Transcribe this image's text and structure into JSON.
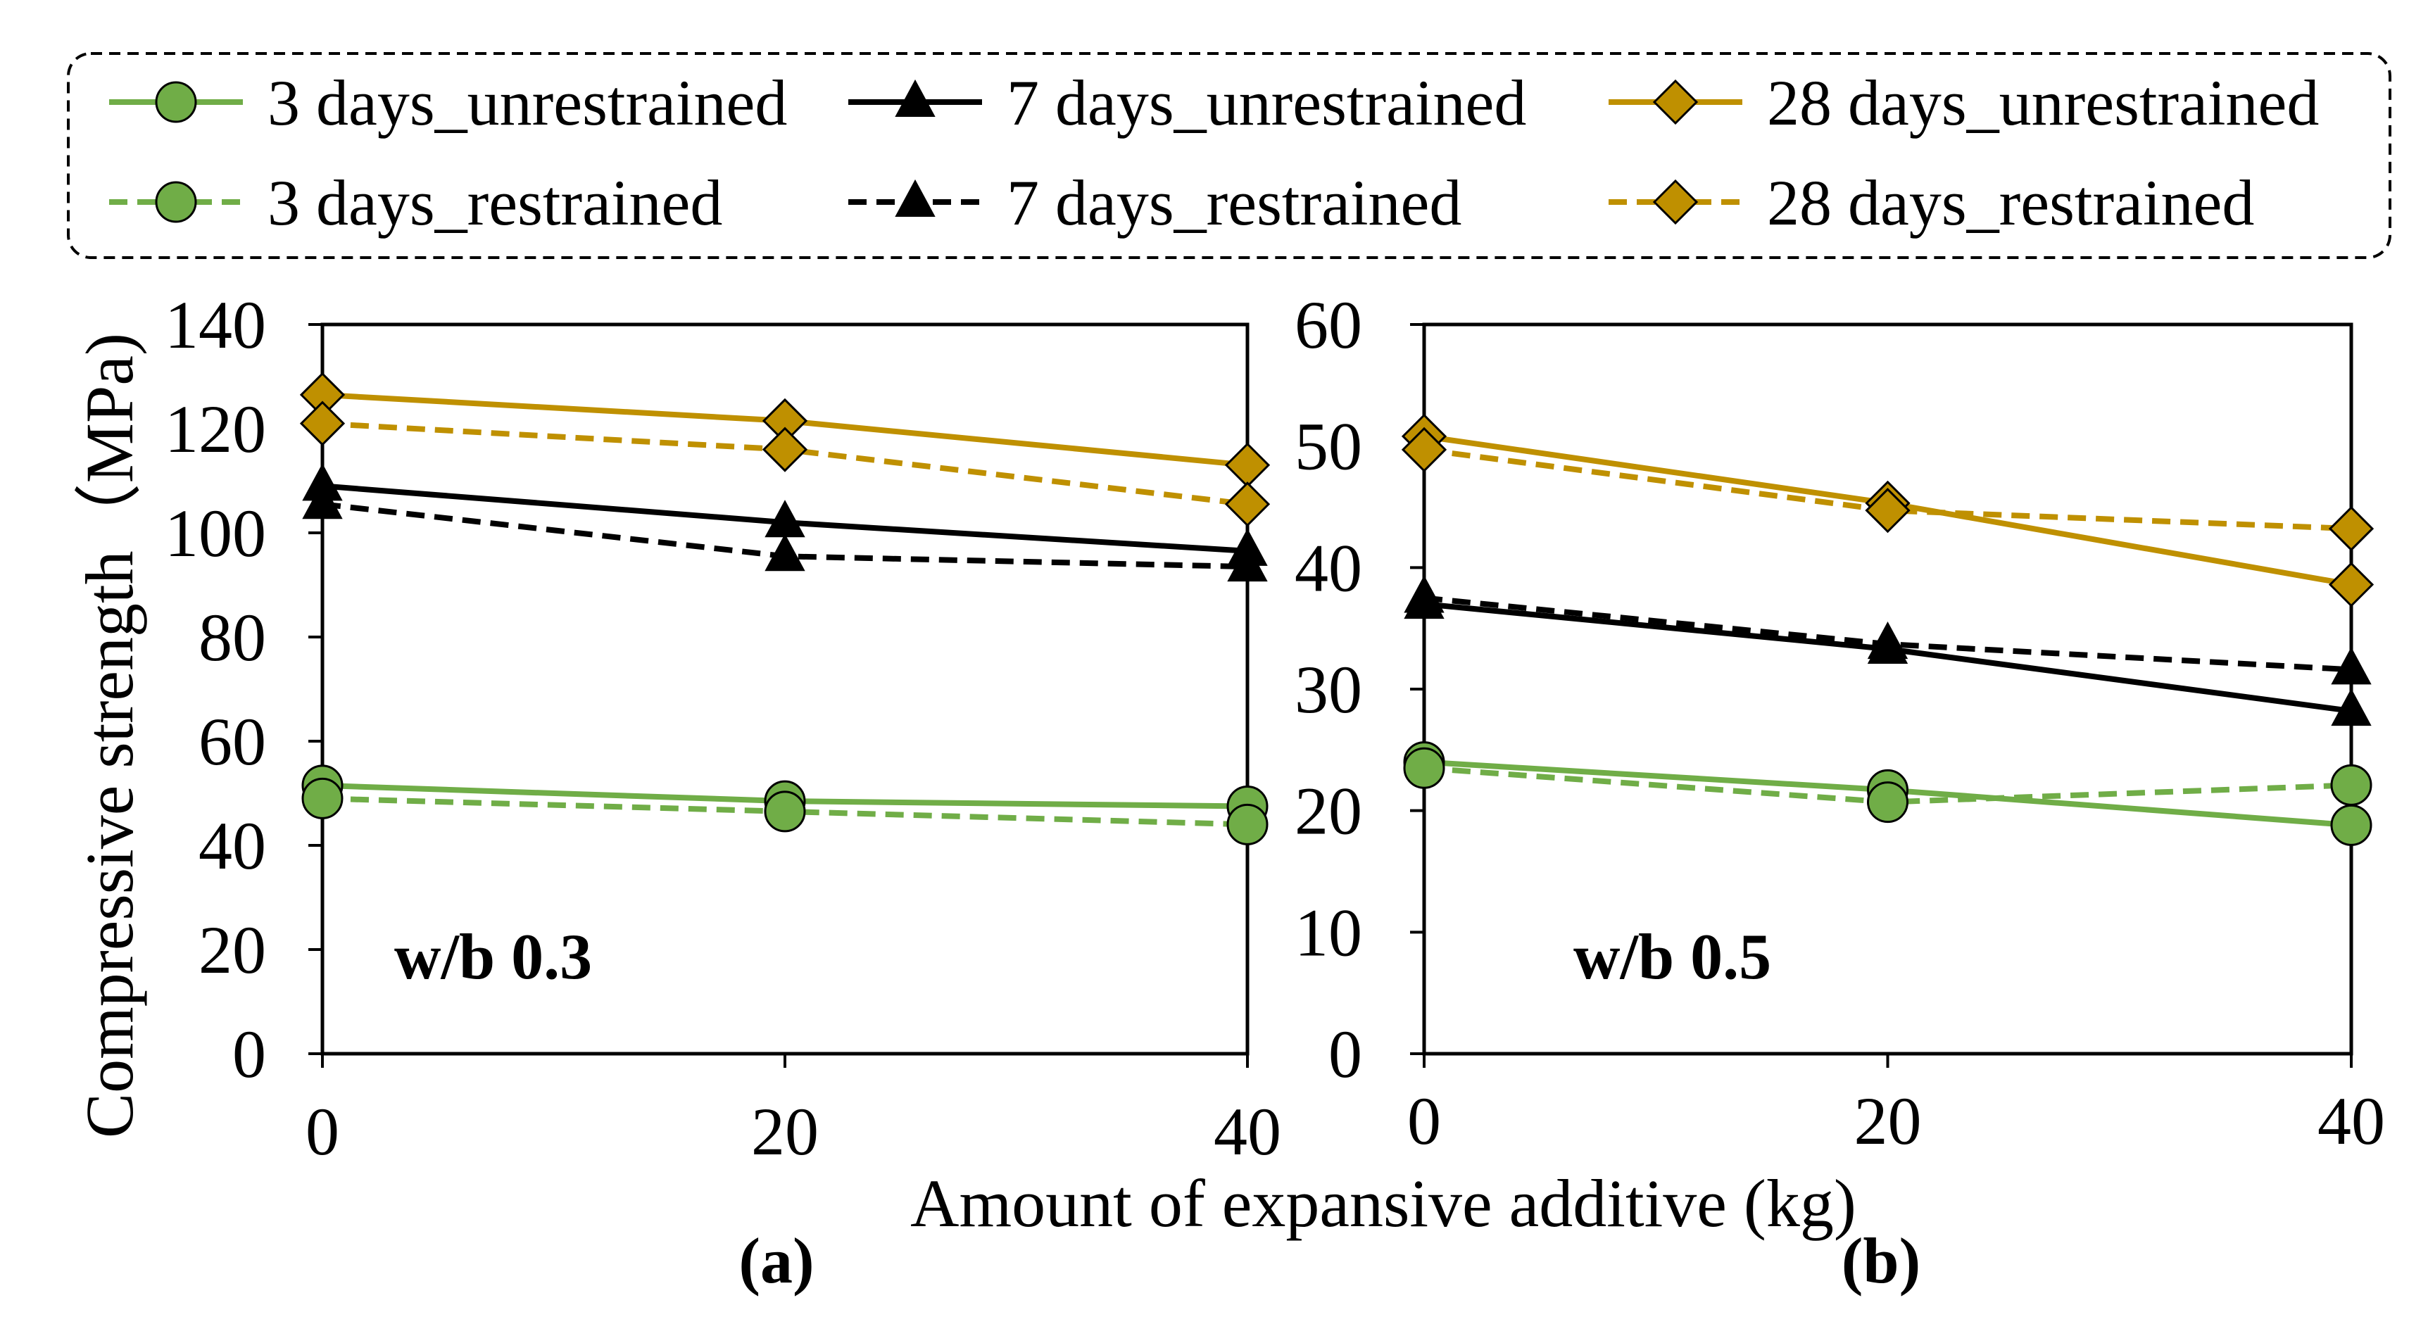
{
  "chart_data": [
    {
      "type": "line",
      "panel": "(a)",
      "annotation": "w/b 0.3",
      "ylabel": "Compressive strength（MPa)",
      "xlabel": "Amount of expansive additive (kg)",
      "x": [
        0,
        20,
        40
      ],
      "x_ticks": [
        "0",
        "20",
        "40"
      ],
      "ylim": [
        0,
        140
      ],
      "y_ticks": [
        "0",
        "20",
        "40",
        "60",
        "80",
        "100",
        "120",
        "140"
      ],
      "grid": false,
      "series": [
        {
          "name": "3 days_unrestrained",
          "values": [
            51.5,
            48.5,
            47.5
          ]
        },
        {
          "name": "3 days_restrained",
          "values": [
            49.0,
            46.5,
            44.0
          ]
        },
        {
          "name": "7 days_unrestrained",
          "values": [
            109.0,
            102.0,
            96.5
          ]
        },
        {
          "name": "7 days_restrained",
          "values": [
            105.5,
            95.5,
            93.5
          ]
        },
        {
          "name": "28 days_unrestrained",
          "values": [
            126.5,
            121.5,
            113.0
          ]
        },
        {
          "name": "28 days_restrained",
          "values": [
            121.0,
            116.0,
            105.5
          ]
        }
      ]
    },
    {
      "type": "line",
      "panel": "(b)",
      "annotation": "w/b 0.5",
      "ylabel": "",
      "xlabel": "Amount of expansive additive (kg)",
      "x": [
        0,
        20,
        40
      ],
      "x_ticks": [
        "0",
        "20",
        "40"
      ],
      "ylim": [
        0,
        60
      ],
      "y_ticks": [
        "0",
        "10",
        "20",
        "30",
        "40",
        "50",
        "60"
      ],
      "grid": false,
      "series": [
        {
          "name": "3 days_unrestrained",
          "values": [
            24.0,
            21.7,
            18.8
          ]
        },
        {
          "name": "3 days_restrained",
          "values": [
            23.5,
            20.7,
            22.1
          ]
        },
        {
          "name": "7 days_unrestrained",
          "values": [
            37.0,
            33.3,
            28.2
          ]
        },
        {
          "name": "7 days_restrained",
          "values": [
            37.5,
            33.7,
            31.6
          ]
        },
        {
          "name": "28 days_unrestrained",
          "values": [
            50.8,
            45.3,
            38.6
          ]
        },
        {
          "name": "28 days_restrained",
          "values": [
            49.7,
            44.7,
            43.2
          ]
        }
      ]
    }
  ],
  "legend": [
    {
      "label": "3 days_unrestrained",
      "color": "#70ad47",
      "dashed": false,
      "marker": "circle"
    },
    {
      "label": "7 days_unrestrained",
      "color": "#000000",
      "dashed": false,
      "marker": "triangle"
    },
    {
      "label": "28 days_unrestrained",
      "color": "#bf9000",
      "dashed": false,
      "marker": "diamond"
    },
    {
      "label": "3 days_restrained",
      "color": "#70ad47",
      "dashed": true,
      "marker": "circle"
    },
    {
      "label": "7 days_restrained",
      "color": "#000000",
      "dashed": true,
      "marker": "triangle"
    },
    {
      "label": "28 days_restrained",
      "color": "#bf9000",
      "dashed": true,
      "marker": "diamond"
    }
  ],
  "colors": {
    "green": "#70ad47",
    "black": "#000000",
    "gold": "#bf9000"
  },
  "shared_xlabel": "Amount of expansive additive (kg)"
}
